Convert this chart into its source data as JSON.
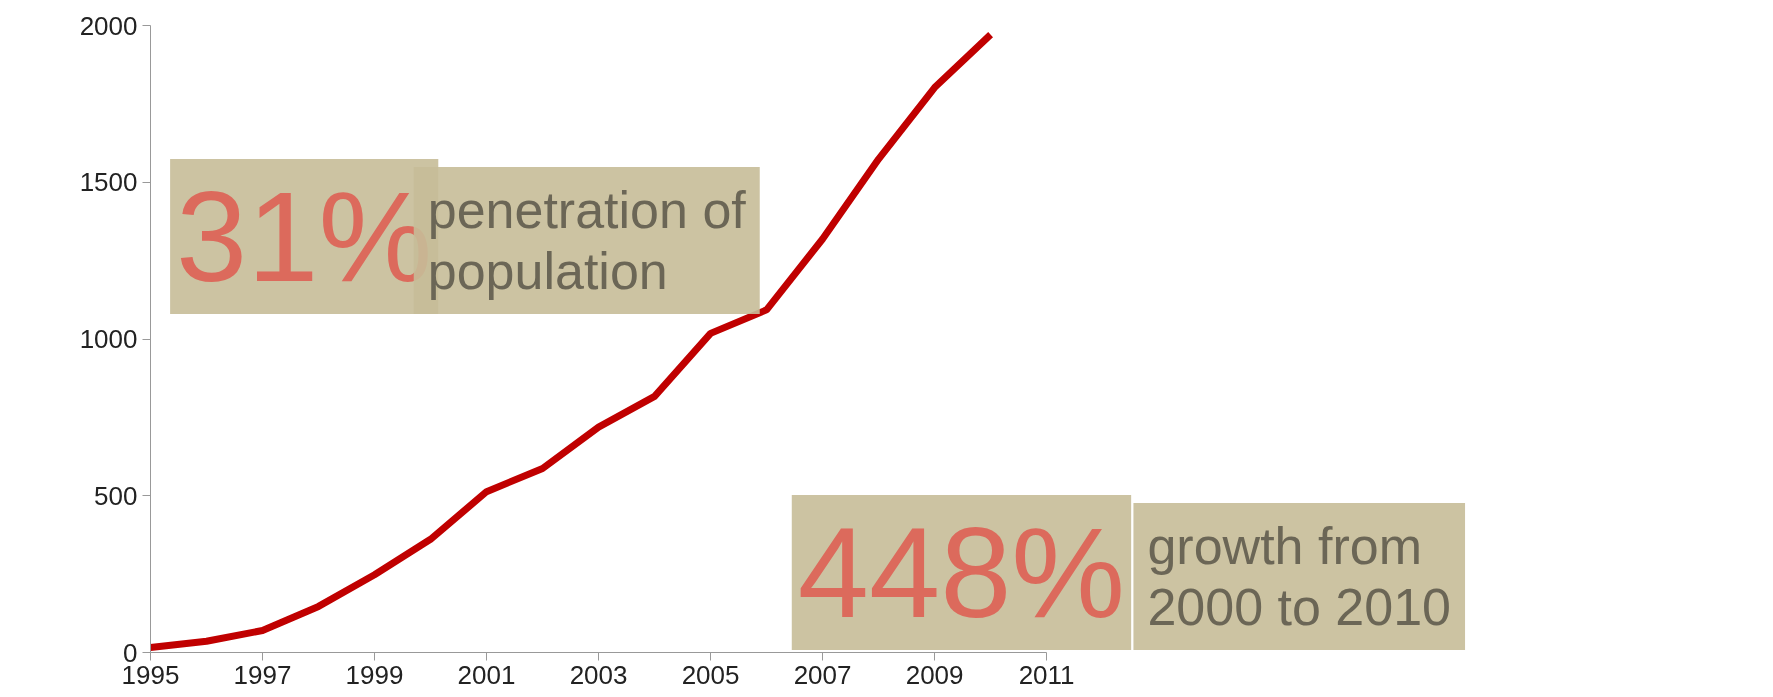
{
  "chart_data": {
    "type": "line",
    "x": [
      1995,
      1996,
      1997,
      1998,
      1999,
      2000,
      2001,
      2002,
      2003,
      2004,
      2005,
      2006,
      2007,
      2008,
      2009,
      2010
    ],
    "series": [
      {
        "color": "#c00000",
        "values": [
          16,
          36,
          70,
          147,
          248,
          361,
          513,
          587,
          719,
          817,
          1018,
          1093,
          1319,
          1574,
          1802,
          1971
        ]
      }
    ],
    "xlim": [
      1995,
      2011
    ],
    "xticks": [
      1995,
      1997,
      1999,
      2001,
      2003,
      2005,
      2007,
      2009,
      2011
    ],
    "ylim": [
      0,
      2000
    ],
    "yticks": [
      0,
      500,
      1000,
      1500,
      2000
    ],
    "grid": false,
    "marker": "none",
    "line_style": "solid",
    "annotations": [
      "31%",
      "penetration of\npopulation",
      "448%",
      "growth from\n2000 to 2010"
    ]
  }
}
